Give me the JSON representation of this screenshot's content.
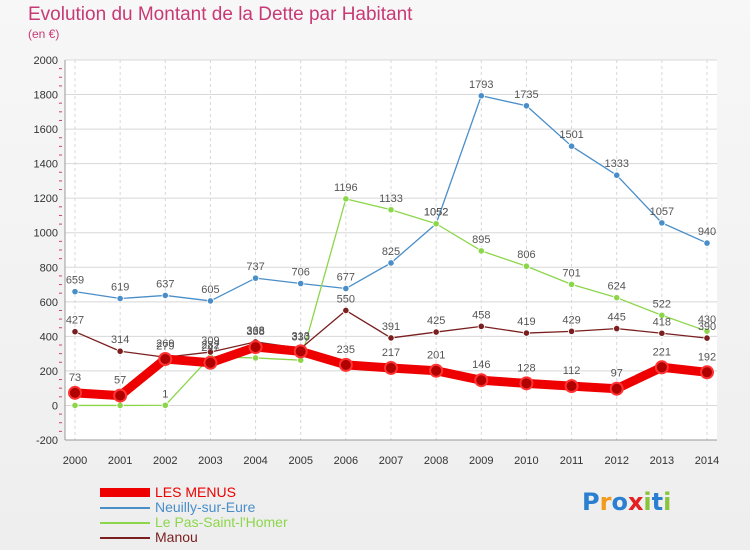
{
  "chart_data": {
    "type": "line",
    "title": "Evolution du Montant de la Dette par Habitant",
    "subtitle": "(en €)",
    "x": [
      "2000",
      "2001",
      "2002",
      "2003",
      "2004",
      "2005",
      "2006",
      "2007",
      "2008",
      "2009",
      "2010",
      "2011",
      "2012",
      "2013",
      "2014"
    ],
    "ylim": [
      -200,
      2000
    ],
    "yticks": [
      "-200",
      "0",
      "200",
      "400",
      "600",
      "800",
      "1000",
      "1200",
      "1400",
      "1600",
      "1800",
      "2000"
    ],
    "grid": true,
    "legend_position": "bottom-left",
    "series": [
      {
        "name": "Neuilly-sur-Eure",
        "color": "#4a8ec8",
        "values": [
          659,
          619,
          637,
          605,
          737,
          706,
          677,
          825,
          1052,
          1793,
          1735,
          1501,
          1333,
          1057,
          940
        ],
        "labels": [
          "659",
          "619",
          "637",
          "605",
          "737",
          "706",
          "677",
          "825",
          "1052",
          "1793",
          "1735",
          "1501",
          "1333",
          "1057",
          "940"
        ]
      },
      {
        "name": "Le Pas-Saint-l'Homer",
        "color": "#8cd64a",
        "values": [
          0,
          0,
          1,
          282,
          275,
          262,
          1196,
          1133,
          1052,
          895,
          806,
          701,
          624,
          522,
          430
        ],
        "labels": [
          "",
          "",
          "1",
          "282",
          "",
          "",
          "1196",
          "1133",
          "1052",
          "895",
          "806",
          "701",
          "624",
          "522",
          "430"
        ]
      },
      {
        "name": "Manou",
        "color": "#7a1f1f",
        "values": [
          427,
          314,
          279,
          309,
          368,
          330,
          550,
          391,
          425,
          458,
          419,
          429,
          445,
          418,
          390
        ],
        "labels": [
          "427",
          "314",
          "279",
          "309",
          "368",
          "330",
          "550",
          "391",
          "425",
          "458",
          "419",
          "429",
          "445",
          "418",
          "390"
        ]
      },
      {
        "name": "LES MENUS",
        "color": "#ee0000",
        "values": [
          73,
          57,
          269,
          247,
          338,
          313,
          235,
          217,
          201,
          146,
          128,
          112,
          97,
          221,
          192
        ],
        "labels": [
          "73",
          "57",
          "269",
          "247",
          "338",
          "313",
          "235",
          "217",
          "201",
          "146",
          "128",
          "112",
          "97",
          "221",
          "192"
        ]
      }
    ],
    "legend": [
      {
        "name": "LES MENUS",
        "color": "#ee0000"
      },
      {
        "name": "Neuilly-sur-Eure",
        "color": "#4a8ec8"
      },
      {
        "name": "Le Pas-Saint-l'Homer",
        "color": "#8cd64a"
      },
      {
        "name": "Manou",
        "color": "#7a1f1f"
      }
    ]
  },
  "logo": {
    "letters": [
      "P",
      "r",
      "o",
      "x",
      "i",
      "t",
      "i"
    ],
    "colors": [
      "#2a7fd0",
      "#f39a1a",
      "#2a7fd0",
      "#e52020",
      "#8ac43f",
      "#2a7fd0",
      "#8ac43f"
    ]
  }
}
